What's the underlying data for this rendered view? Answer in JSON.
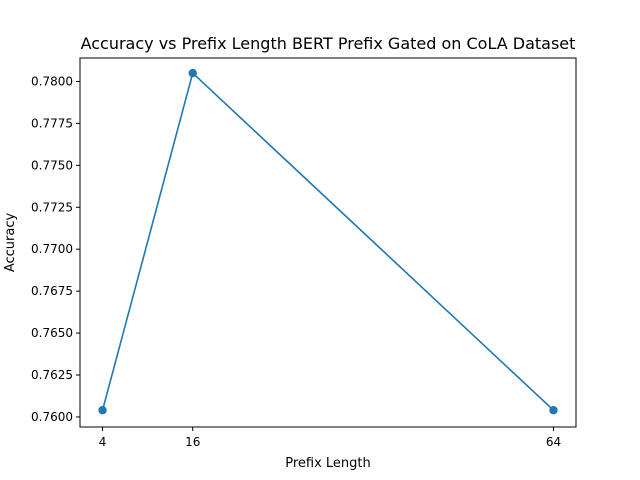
{
  "chart_data": {
    "type": "line",
    "title": "Accuracy vs Prefix Length BERT Prefix Gated on CoLA Dataset",
    "xlabel": "Prefix Length",
    "ylabel": "Accuracy",
    "x": [
      4,
      16,
      64
    ],
    "series": [
      {
        "values": [
          0.7604,
          0.7805,
          0.7604
        ],
        "color": "#1f77b4",
        "marker": "circle"
      }
    ],
    "xlim": [
      1.0,
      67.0
    ],
    "ylim": [
      0.7594,
      0.7814
    ],
    "x_ticks": [
      4,
      16,
      64
    ],
    "x_tick_labels": [
      "4",
      "16",
      "64"
    ],
    "y_ticks": [
      0.76,
      0.7625,
      0.765,
      0.7675,
      0.77,
      0.7725,
      0.775,
      0.7775,
      0.78
    ],
    "y_tick_labels": [
      "0.7600",
      "0.7625",
      "0.7650",
      "0.7675",
      "0.7700",
      "0.7725",
      "0.7750",
      "0.7775",
      "0.7800"
    ],
    "grid": false,
    "legend": "none"
  }
}
